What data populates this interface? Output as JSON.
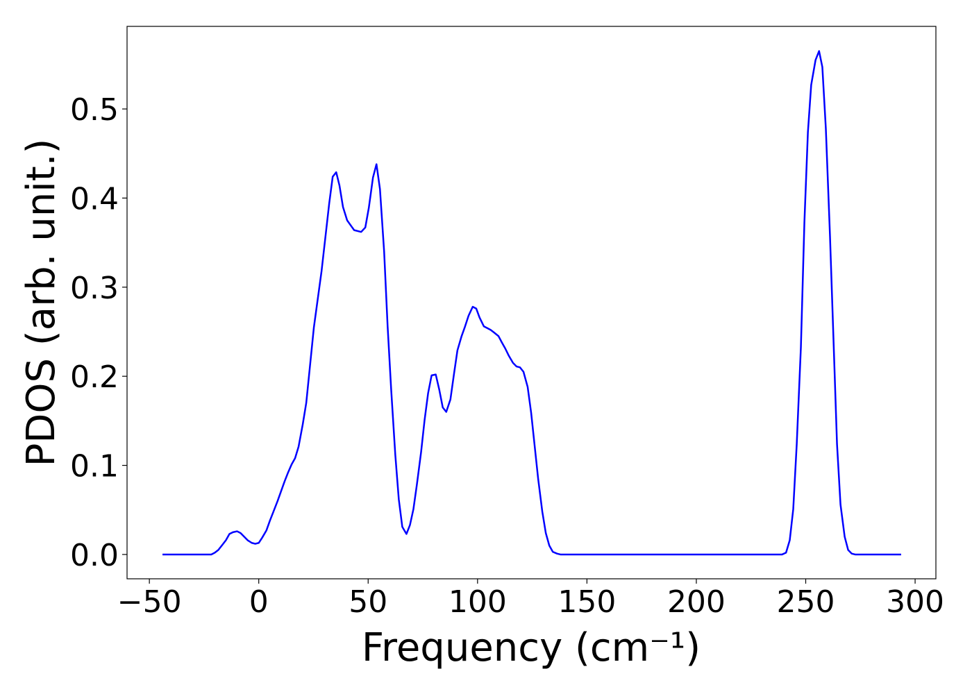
{
  "chart_data": {
    "type": "line",
    "xlabel": "Frequency (cm⁻¹)",
    "ylabel": "PDOS (arb. unit.)",
    "x": [
      -44,
      -21.7,
      -20.1,
      -18.5,
      -16.9,
      -15,
      -13.4,
      -11.8,
      -9.9,
      -8.3,
      -6.7,
      -5.1,
      -3.2,
      -1.6,
      0,
      1.6,
      3.5,
      5.1,
      6.7,
      8.6,
      10.2,
      11.8,
      13.4,
      15,
      16.6,
      18.2,
      20.1,
      21.7,
      25.2,
      28.7,
      32.2,
      33.8,
      35.4,
      36.9,
      38.5,
      40.4,
      43.6,
      46.8,
      48.7,
      50.3,
      52.2,
      53.8,
      55.4,
      57.3,
      58.9,
      60.5,
      62.4,
      64,
      65.6,
      67.5,
      69.1,
      70.7,
      72.3,
      74.2,
      75.8,
      77.4,
      79,
      80.9,
      82.5,
      84.1,
      85.7,
      87.6,
      89.2,
      90.8,
      92.7,
      94.3,
      95.9,
      97.8,
      99.4,
      100.9,
      102.9,
      104.5,
      106,
      107.6,
      109.6,
      111.1,
      112.7,
      114.3,
      116.2,
      117.8,
      119.4,
      121,
      122.9,
      124.5,
      126.1,
      127.7,
      129.6,
      131.2,
      132.8,
      134.4,
      136.3,
      137.9,
      239.2,
      241,
      242.7,
      244.3,
      245.9,
      247.8,
      249.4,
      251,
      252.5,
      254.5,
      256.1,
      257.6,
      259.2,
      261.1,
      262.7,
      264.3,
      265.9,
      267.8,
      269.4,
      271,
      272.6,
      293.6
    ],
    "series": [
      {
        "color": "#0000ff",
        "values": [
          0,
          0,
          0.002,
          0.005,
          0.01,
          0.016,
          0.023,
          0.025,
          0.026,
          0.024,
          0.02,
          0.016,
          0.013,
          0.012,
          0.013,
          0.019,
          0.027,
          0.038,
          0.048,
          0.06,
          0.071,
          0.082,
          0.092,
          0.101,
          0.108,
          0.121,
          0.146,
          0.17,
          0.255,
          0.318,
          0.394,
          0.424,
          0.429,
          0.414,
          0.39,
          0.375,
          0.364,
          0.362,
          0.367,
          0.389,
          0.423,
          0.438,
          0.41,
          0.34,
          0.256,
          0.186,
          0.112,
          0.062,
          0.031,
          0.023,
          0.033,
          0.051,
          0.079,
          0.115,
          0.151,
          0.181,
          0.201,
          0.202,
          0.185,
          0.165,
          0.16,
          0.174,
          0.202,
          0.229,
          0.245,
          0.256,
          0.268,
          0.278,
          0.276,
          0.266,
          0.256,
          0.254,
          0.252,
          0.249,
          0.245,
          0.238,
          0.231,
          0.223,
          0.215,
          0.211,
          0.21,
          0.205,
          0.188,
          0.159,
          0.122,
          0.085,
          0.048,
          0.024,
          0.01,
          0.003,
          0.001,
          0,
          0,
          0.002,
          0.016,
          0.051,
          0.124,
          0.233,
          0.373,
          0.474,
          0.527,
          0.555,
          0.565,
          0.547,
          0.478,
          0.357,
          0.241,
          0.124,
          0.056,
          0.02,
          0.005,
          0.001,
          0,
          0
        ]
      }
    ],
    "xlim": [
      -60.2,
      309.5
    ],
    "ylim": [
      -0.0273,
      0.5927
    ],
    "xticks": [
      {
        "value": -50,
        "label": "−50"
      },
      0,
      50,
      100,
      150,
      200,
      250,
      300
    ],
    "yticks": [
      {
        "value": 0,
        "label": "0.0"
      },
      0.1,
      0.2,
      0.3,
      0.4,
      0.5
    ]
  }
}
